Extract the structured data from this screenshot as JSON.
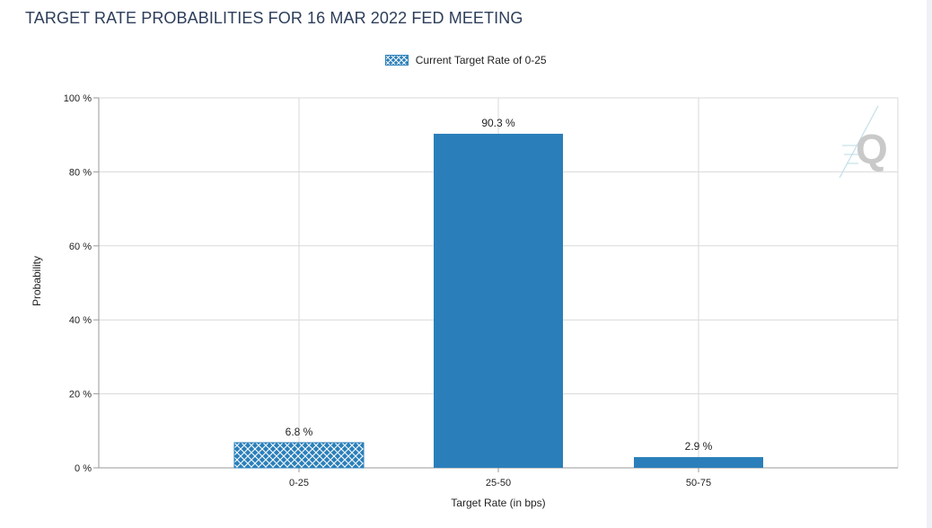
{
  "title": "TARGET RATE PROBABILITIES FOR 16 MAR 2022 FED MEETING",
  "chart_data": {
    "type": "bar",
    "title": "TARGET RATE PROBABILITIES FOR 16 MAR 2022 FED MEETING",
    "categories": [
      "0-25",
      "25-50",
      "50-75"
    ],
    "values": [
      6.8,
      90.3,
      2.9
    ],
    "value_labels": [
      "6.8 %",
      "90.3 %",
      "2.9 %"
    ],
    "highlighted_category": "0-25",
    "legend": [
      {
        "name": "Current Target Rate of 0-25",
        "pattern": "crosshatch"
      }
    ],
    "legend_position": "top-center",
    "xlabel": "Target Rate (in bps)",
    "ylabel": "Probability",
    "ylim": [
      0,
      100
    ],
    "yticks": [
      0,
      20,
      40,
      60,
      80,
      100
    ],
    "ytick_labels": [
      "0 %",
      "20 %",
      "40 %",
      "60 %",
      "80 %",
      "100 %"
    ],
    "grid": true,
    "colors": {
      "bar": "#2a7fba",
      "grid": "#d9d9d9",
      "axis": "#9a9a9a",
      "logo": "#c9c9c9",
      "logo_lines": "#b9dbe6"
    }
  }
}
